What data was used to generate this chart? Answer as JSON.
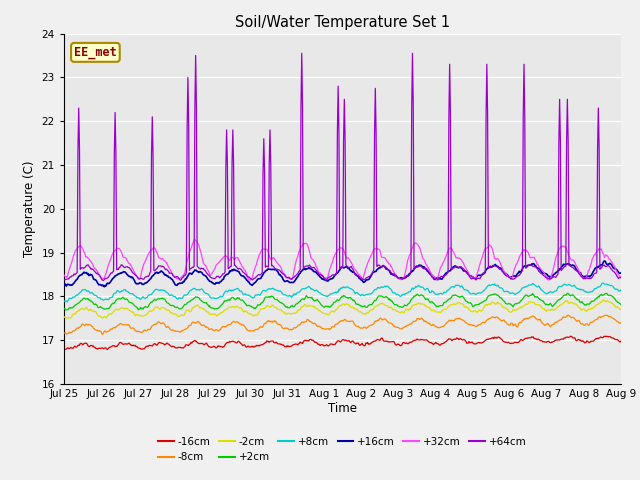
{
  "title": "Soil/Water Temperature Set 1",
  "xlabel": "Time",
  "ylabel": "Temperature (C)",
  "ylim": [
    16.0,
    24.0
  ],
  "yticks": [
    16.0,
    17.0,
    18.0,
    19.0,
    20.0,
    21.0,
    22.0,
    23.0,
    24.0
  ],
  "plot_bg_color": "#e8e8e8",
  "fig_bg_color": "#f0f0f0",
  "series_colors": {
    "-16cm": "#dd0000",
    "-8cm": "#ff8800",
    "-2cm": "#dddd00",
    "+2cm": "#00cc00",
    "+8cm": "#00cccc",
    "+16cm": "#0000aa",
    "+32cm": "#ff44ff",
    "+64cm": "#9900cc"
  },
  "annotation_text": "EE_met",
  "annotation_bg": "#ffffcc",
  "annotation_border": "#aa8800",
  "annotation_text_color": "#880000",
  "n_days": 15,
  "x_tick_labels": [
    "Jul 25",
    "Jul 26",
    "Jul 27",
    "Jul 28",
    "Jul 29",
    "Jul 30",
    "Jul 31",
    "Aug 1",
    "Aug 2",
    "Aug 3",
    "Aug 4",
    "Aug 5",
    "Aug 6",
    "Aug 7",
    "Aug 8",
    "Aug 9"
  ],
  "samples_per_day": 48
}
